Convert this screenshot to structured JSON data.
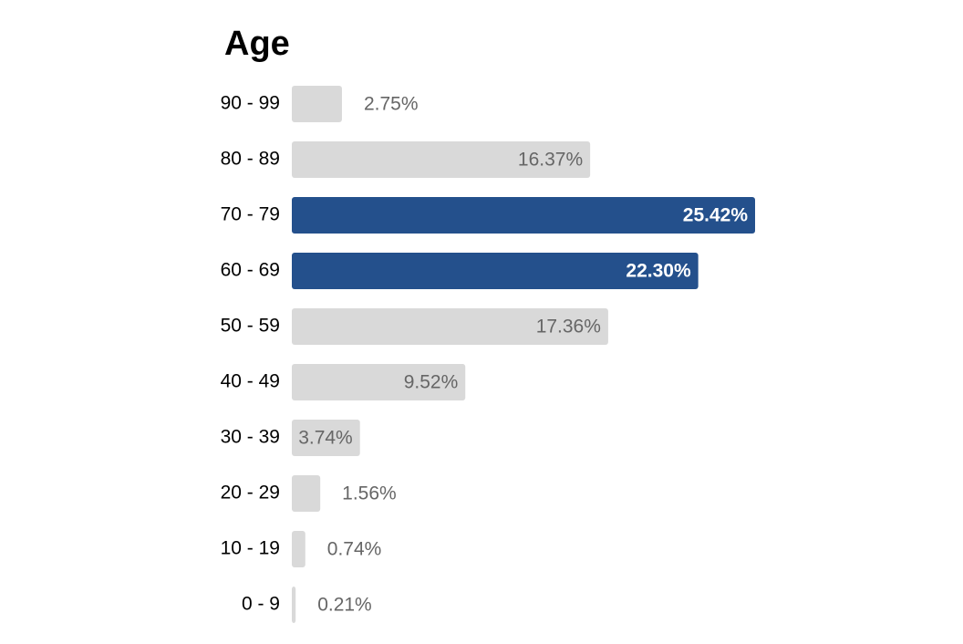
{
  "chart_data": {
    "type": "bar",
    "orientation": "horizontal",
    "title": "Age",
    "categories": [
      "90 - 99",
      "80 - 89",
      "70 - 79",
      "60 - 69",
      "50 - 59",
      "40 - 49",
      "30 - 39",
      "20 - 29",
      "10 - 19",
      "0 - 9"
    ],
    "values": [
      2.75,
      16.37,
      25.42,
      22.3,
      17.36,
      9.52,
      3.74,
      1.56,
      0.74,
      0.21
    ],
    "value_labels": [
      "2.75%",
      "16.37%",
      "25.42%",
      "22.30%",
      "17.36%",
      "9.52%",
      "3.74%",
      "1.56%",
      "0.74%",
      "0.21%"
    ],
    "highlighted": [
      false,
      false,
      true,
      true,
      false,
      false,
      false,
      false,
      false,
      false
    ],
    "color": "#d9d9d9",
    "highlight_color": "#24508c"
  }
}
